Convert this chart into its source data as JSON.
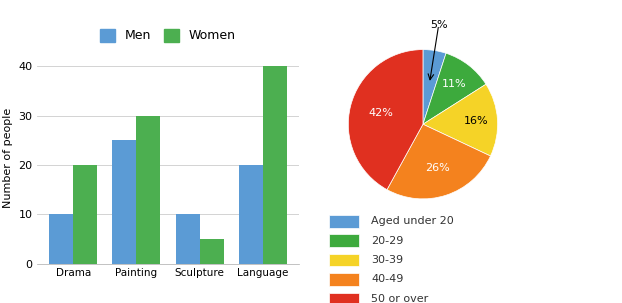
{
  "bar_categories": [
    "Drama",
    "Painting",
    "Sculpture",
    "Language"
  ],
  "men_values": [
    10,
    25,
    10,
    20
  ],
  "women_values": [
    20,
    30,
    5,
    40
  ],
  "bar_color_men": "#5B9BD5",
  "bar_color_women": "#4CAF50",
  "ylabel": "Number of people",
  "ylim": [
    0,
    43
  ],
  "yticks": [
    0,
    10,
    20,
    30,
    40
  ],
  "bar_legend_labels": [
    "Men",
    "Women"
  ],
  "pie_values": [
    5,
    11,
    16,
    26,
    42
  ],
  "pie_pct_labels": [
    "5%",
    "11%",
    "16%",
    "26%",
    "42%"
  ],
  "pie_colors": [
    "#5B9BD5",
    "#3DAA3D",
    "#F5D327",
    "#F4821E",
    "#E03020"
  ],
  "pie_legend_labels": [
    "Aged under 20",
    "20-29",
    "30-39",
    "40-49",
    "50 or over"
  ],
  "background_color": "#ffffff"
}
